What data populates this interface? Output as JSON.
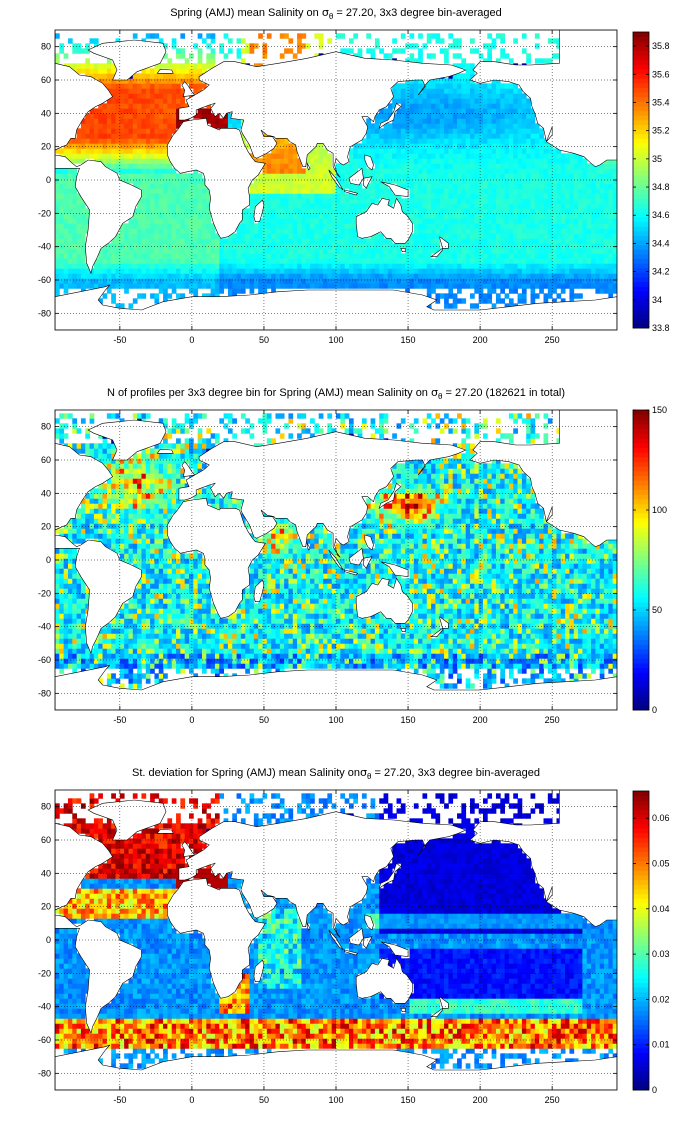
{
  "chart_data": [
    {
      "type": "heatmap",
      "title_parts": [
        "Spring (AMJ) mean Salinity on ",
        "σ",
        "θ",
        " = 27.20, 3x3 degree bin-averaged"
      ],
      "xlim": [
        -95,
        295
      ],
      "ylim": [
        -90,
        90
      ],
      "x_ticks": [
        -50,
        0,
        50,
        100,
        150,
        200,
        250
      ],
      "y_ticks": [
        80,
        60,
        40,
        20,
        0,
        -20,
        -40,
        -60,
        -80
      ],
      "colorbar": {
        "range": [
          33.8,
          35.9
        ],
        "ticks": [
          "33.8",
          "34",
          "34.2",
          "34.4",
          "34.6",
          "34.8",
          "35",
          "35.2",
          "35.4",
          "35.6",
          "35.8"
        ],
        "tick_values": [
          33.8,
          34.0,
          34.2,
          34.4,
          34.6,
          34.8,
          35.0,
          35.2,
          35.4,
          35.6,
          35.8
        ]
      },
      "grid": true,
      "colormap": "jet"
    },
    {
      "type": "heatmap",
      "title_parts": [
        "N of profiles per 3x3 degree bin for Spring (AMJ) mean Salinity on ",
        "σ",
        "θ",
        " = 27.20 (182621 in total)"
      ],
      "xlim": [
        -95,
        295
      ],
      "ylim": [
        -90,
        90
      ],
      "x_ticks": [
        -50,
        0,
        50,
        100,
        150,
        200,
        250
      ],
      "y_ticks": [
        80,
        60,
        40,
        20,
        0,
        -20,
        -40,
        -60,
        -80
      ],
      "colorbar": {
        "range": [
          0,
          150
        ],
        "ticks": [
          "0",
          "50",
          "100",
          "150"
        ],
        "tick_values": [
          0,
          50,
          100,
          150
        ]
      },
      "grid": true,
      "colormap": "jet"
    },
    {
      "type": "heatmap",
      "title_parts": [
        "St. deviation for Spring (AMJ) mean Salinity on",
        "σ",
        "θ",
        " = 27.20, 3x3 degree bin-averaged"
      ],
      "xlim": [
        -95,
        295
      ],
      "ylim": [
        -90,
        90
      ],
      "x_ticks": [
        -50,
        0,
        50,
        100,
        150,
        200,
        250
      ],
      "y_ticks": [
        80,
        60,
        40,
        20,
        0,
        -20,
        -40,
        -60,
        -80
      ],
      "colorbar": {
        "range": [
          0,
          0.066
        ],
        "ticks": [
          "0",
          "0.01",
          "0.02",
          "0.03",
          "0.04",
          "0.05",
          "0.06"
        ],
        "tick_values": [
          0,
          0.01,
          0.02,
          0.03,
          0.04,
          0.05,
          0.06
        ]
      },
      "grid": true,
      "colormap": "jet"
    }
  ]
}
